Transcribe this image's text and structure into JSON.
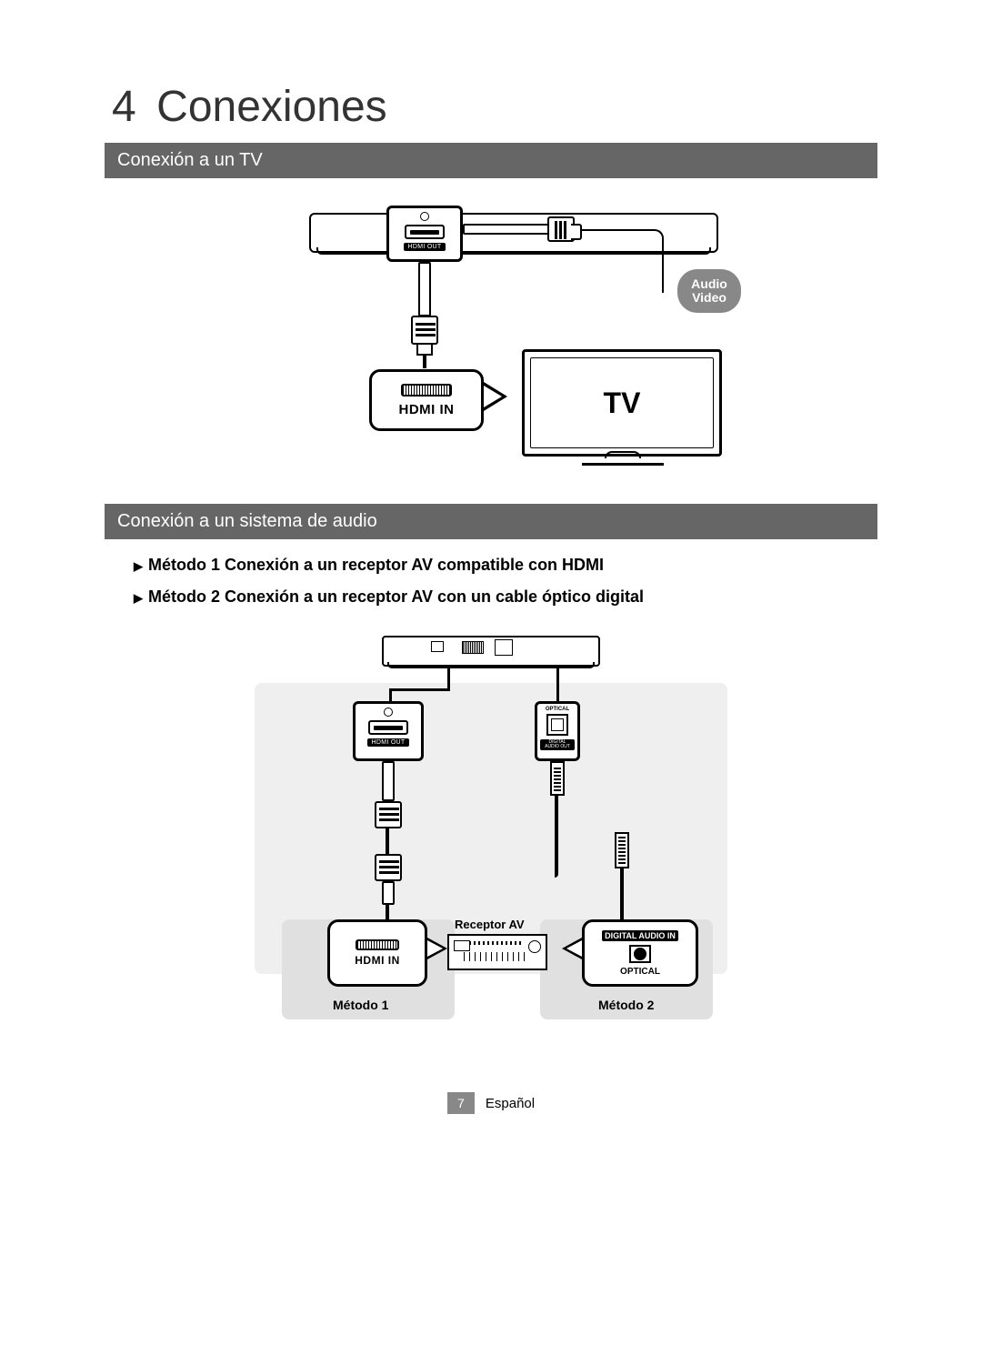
{
  "section": {
    "number": "4",
    "title": "Conexiones"
  },
  "sub1": {
    "title": "Conexión a un TV"
  },
  "sub2": {
    "title": "Conexión a un sistema de audio"
  },
  "diagram1": {
    "hdmi_out": "HDMI OUT",
    "av_line1": "Audio",
    "av_line2": "Video",
    "hdmi_in": "HDMI IN",
    "tv": "TV"
  },
  "methods": {
    "m1": "Método 1 Conexión a un receptor AV compatible con HDMI",
    "m2": "Método 2 Conexión a un receptor AV con un cable óptico digital"
  },
  "diagram2": {
    "hdmi_out": "HDMI OUT",
    "optical_top": "OPTICAL",
    "dao": "DIGITAL\nAUDIO OUT",
    "receptor": "Receptor AV",
    "hdmi_in": "HDMI IN",
    "dai": "DIGITAL AUDIO IN",
    "optical": "OPTICAL",
    "method1": "Método 1",
    "method2": "Método 2"
  },
  "footer": {
    "page": "7",
    "lang": "Español"
  },
  "colors": {
    "header_bg": "#666666",
    "panel_bg": "#efefef",
    "panel_dark": "#e0e0e0",
    "badge": "#888888"
  }
}
